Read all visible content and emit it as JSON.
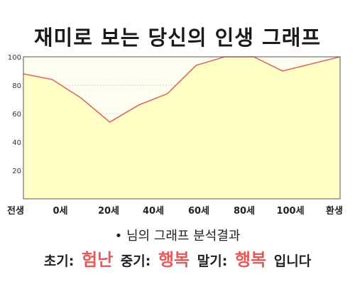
{
  "chart_data": {
    "type": "area",
    "title": "재미로 보는 당신의 인생 그래프",
    "xlabel": "",
    "ylabel": "",
    "ylim": [
      0,
      100
    ],
    "yticks": [
      20,
      40,
      60,
      80,
      100
    ],
    "x_tick_labels": [
      "전생",
      "0세",
      "20세",
      "40세",
      "60세",
      "80세",
      "100세",
      "환생"
    ],
    "grid": true,
    "legend": "none",
    "series": [
      {
        "x": [
          "전생",
          "0세",
          "",
          "20세",
          "",
          "40세",
          "",
          "60세",
          "",
          "80세",
          "100세",
          "환생"
        ],
        "values": [
          88,
          84,
          71,
          54,
          66,
          74,
          94,
          100,
          100,
          90,
          95,
          100
        ]
      }
    ],
    "colors": {
      "line": "#e06666",
      "fill": "#ffffc6",
      "plot_bg": "#fffff0"
    }
  },
  "summary": {
    "bullet": "•",
    "text": "님의 그래프 분석결과"
  },
  "result": {
    "early_label": "초기:",
    "early_value": "험난",
    "mid_label": "중기:",
    "mid_value": "행복",
    "late_label": "말기:",
    "late_value": "행복",
    "ending": "입니다"
  }
}
